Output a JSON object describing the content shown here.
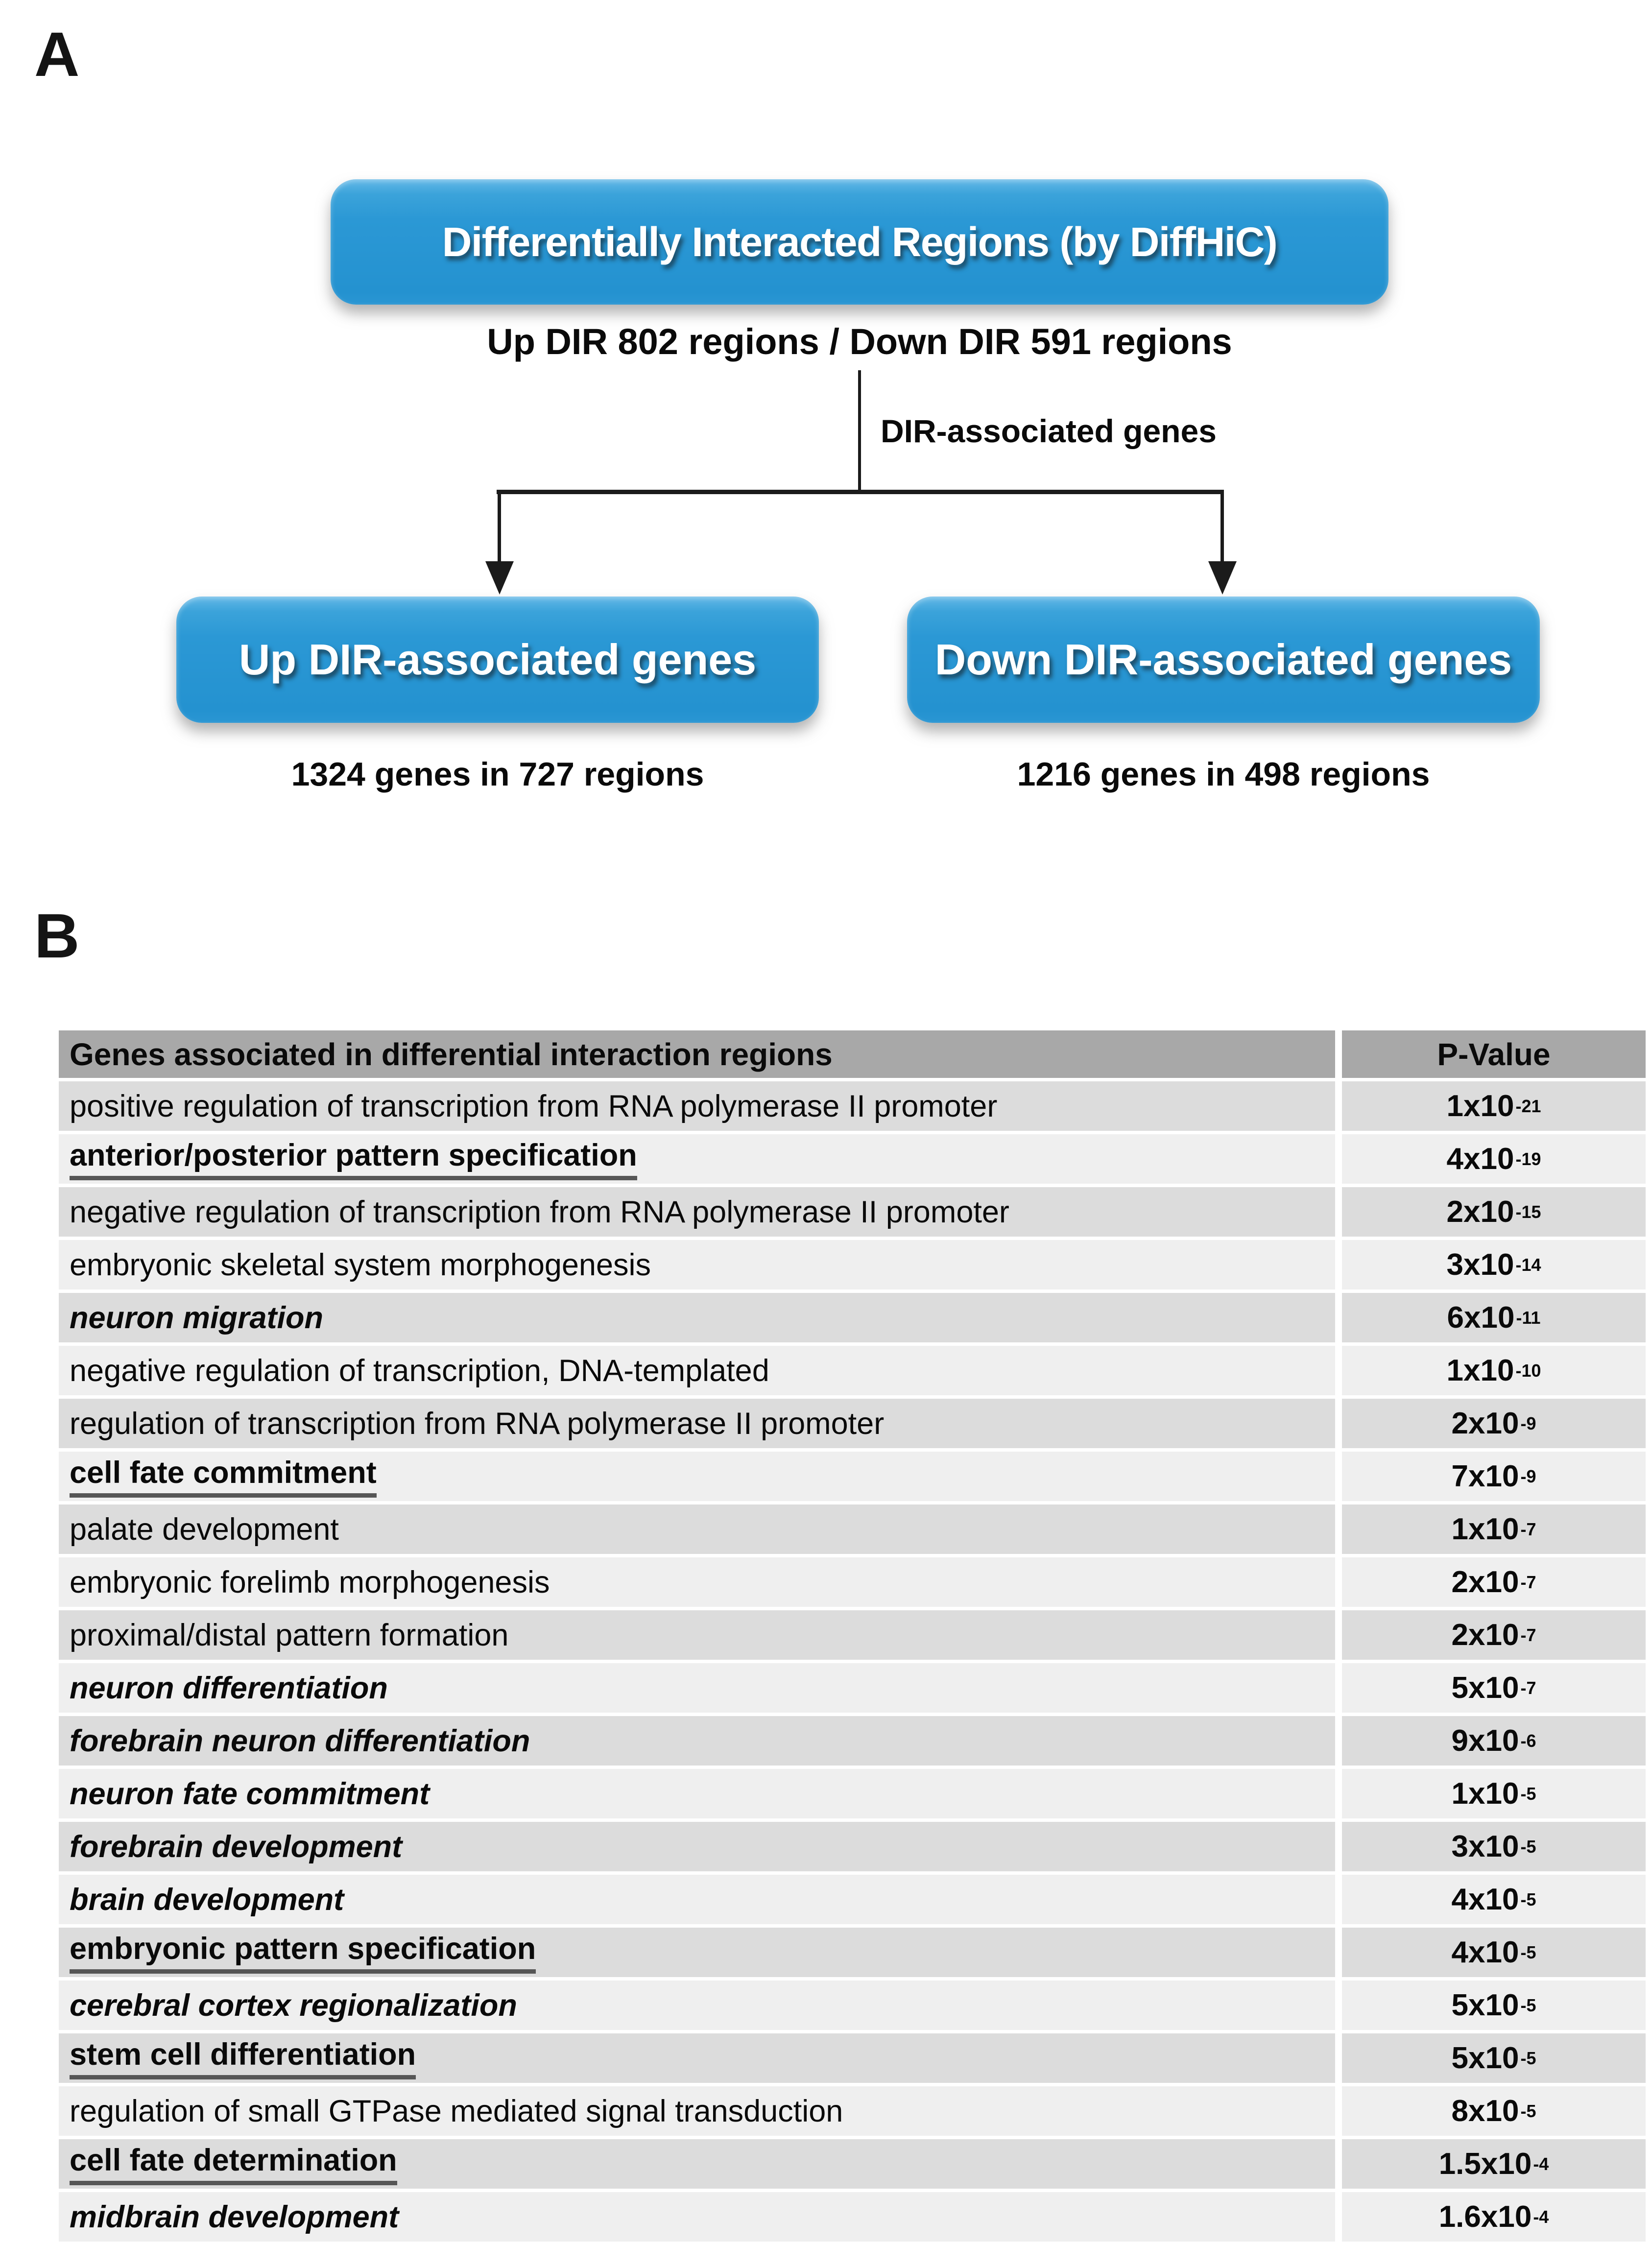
{
  "panel_a": {
    "label": "A",
    "top_box": "Differentially Interacted Regions (by DiffHiC)",
    "subtitle": "Up DIR 802 regions / Down DIR 591 regions",
    "branch_label": "DIR-associated genes",
    "left_box": "Up DIR-associated genes",
    "right_box": "Down DIR-associated genes",
    "left_caption": "1324 genes in 727 regions",
    "right_caption": "1216 genes in 498 regions"
  },
  "panel_b": {
    "label": "B",
    "table": {
      "header": {
        "genes": "Genes associated in differential interaction regions",
        "pvalue": "P-Value"
      },
      "rows": [
        {
          "term": "positive regulation of transcription from RNA polymerase II promoter",
          "emphasis": "normal",
          "p": "1x10",
          "exp": "-21"
        },
        {
          "term": "anterior/posterior pattern specification",
          "emphasis": "bold-underline",
          "p": "4x10",
          "exp": "-19"
        },
        {
          "term": "negative regulation of transcription from RNA polymerase II promoter",
          "emphasis": "normal",
          "p": "2x10",
          "exp": "-15"
        },
        {
          "term": "embryonic skeletal system morphogenesis",
          "emphasis": "normal",
          "p": "3x10",
          "exp": "-14"
        },
        {
          "term": "neuron migration",
          "emphasis": "bold-italic",
          "p": "6x10",
          "exp": "-11"
        },
        {
          "term": "negative regulation of transcription, DNA-templated",
          "emphasis": "normal",
          "p": "1x10",
          "exp": "-10"
        },
        {
          "term": "regulation of transcription from RNA polymerase II promoter",
          "emphasis": "normal",
          "p": "2x10",
          "exp": "-9"
        },
        {
          "term": "cell fate commitment",
          "emphasis": "bold-underline",
          "p": "7x10",
          "exp": "-9"
        },
        {
          "term": "palate development",
          "emphasis": "normal",
          "p": "1x10",
          "exp": "-7"
        },
        {
          "term": "embryonic forelimb morphogenesis",
          "emphasis": "normal",
          "p": "2x10",
          "exp": "-7"
        },
        {
          "term": "proximal/distal pattern formation",
          "emphasis": "normal",
          "p": "2x10",
          "exp": "-7"
        },
        {
          "term": "neuron differentiation",
          "emphasis": "bold-italic",
          "p": "5x10",
          "exp": "-7"
        },
        {
          "term": "forebrain neuron differentiation",
          "emphasis": "bold-italic",
          "p": "9x10",
          "exp": "-6"
        },
        {
          "term": "neuron fate commitment",
          "emphasis": "bold-italic",
          "p": "1x10",
          "exp": "-5"
        },
        {
          "term": "forebrain development",
          "emphasis": "bold-italic",
          "p": "3x10",
          "exp": "-5"
        },
        {
          "term": "brain development",
          "emphasis": "bold-italic",
          "p": "4x10",
          "exp": "-5"
        },
        {
          "term": "embryonic pattern specification",
          "emphasis": "bold-underline",
          "p": "4x10",
          "exp": "-5"
        },
        {
          "term": "cerebral cortex regionalization",
          "emphasis": "bold-italic",
          "p": "5x10",
          "exp": "-5"
        },
        {
          "term": "stem cell differentiation",
          "emphasis": "bold-underline",
          "p": "5x10",
          "exp": "-5"
        },
        {
          "term": "regulation of small GTPase mediated signal transduction",
          "emphasis": "normal",
          "p": "8x10",
          "exp": "-5"
        },
        {
          "term": "cell fate determination",
          "emphasis": "bold-underline",
          "p": "1.5x10",
          "exp": "-4"
        },
        {
          "term": "midbrain development",
          "emphasis": "bold-italic",
          "p": "1.6x10",
          "exp": "-4"
        }
      ]
    }
  },
  "colors": {
    "box_blue": "#2b98d5",
    "box_blue_light": "#63b8e7",
    "header_gray": "#a8a8a8",
    "row_dark": "#dcdcdc",
    "row_light": "#efefef",
    "line_black": "#1b1b1b",
    "underline_gray": "#565656"
  }
}
